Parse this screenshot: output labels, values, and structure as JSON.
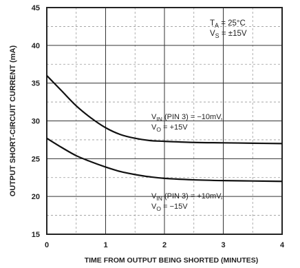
{
  "chart_data": {
    "type": "line",
    "xlabel": "TIME FROM OUTPUT BEING SHORTED (MINUTES)",
    "ylabel": "OUTPUT SHORT-CIRCUIT CURRENT (mA)",
    "xlim": [
      0,
      4
    ],
    "ylim": [
      15,
      45
    ],
    "x_ticks": [
      0,
      1,
      2,
      3,
      4
    ],
    "y_ticks": [
      15,
      20,
      25,
      30,
      35,
      40,
      45
    ],
    "grid": true,
    "conditions": [
      {
        "main": "T",
        "sub": "A",
        "rest": " = 25°C"
      },
      {
        "main": "V",
        "sub": "S",
        "rest": " = ±15V"
      }
    ],
    "series": [
      {
        "label_line1": {
          "main": "V",
          "sub": "IN",
          "rest": " (PIN 3) = −10mV,"
        },
        "label_line2": {
          "main": "V",
          "sub": "O",
          "rest": " = +15V"
        },
        "x": [
          0,
          0.25,
          0.5,
          0.75,
          1.0,
          1.25,
          1.5,
          1.75,
          2.0,
          2.5,
          3.0,
          3.5,
          4.0
        ],
        "y": [
          36.0,
          34.0,
          32.0,
          30.4,
          29.1,
          28.2,
          27.7,
          27.4,
          27.3,
          27.15,
          27.1,
          27.05,
          27.0
        ]
      },
      {
        "label_line1": {
          "main": "V",
          "sub": "IN",
          "rest": " (PIN 3) = +10mV,"
        },
        "label_line2": {
          "main": "V",
          "sub": "O",
          "rest": " = −15V"
        },
        "x": [
          0,
          0.25,
          0.5,
          0.75,
          1.0,
          1.25,
          1.5,
          1.75,
          2.0,
          2.5,
          3.0,
          3.5,
          4.0
        ],
        "y": [
          27.7,
          26.5,
          25.4,
          24.6,
          23.9,
          23.3,
          22.9,
          22.6,
          22.4,
          22.2,
          22.1,
          22.05,
          22.0
        ]
      }
    ]
  }
}
